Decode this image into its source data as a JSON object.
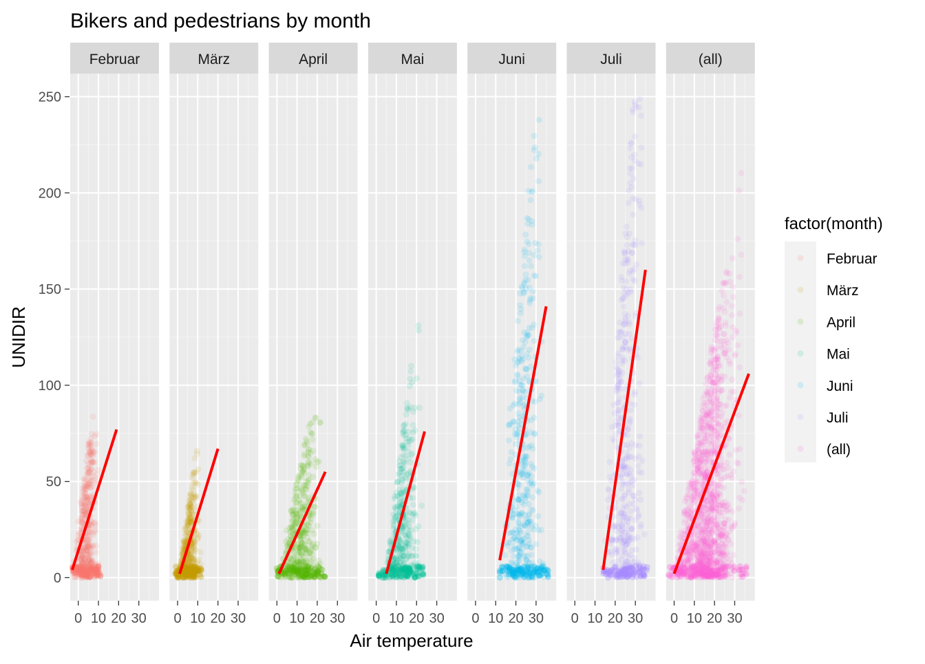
{
  "chart_data": {
    "type": "scatter",
    "title": "Bikers and pedestrians by month",
    "xlabel": "Air temperature",
    "ylabel": "UNIDIR",
    "xlim": [
      -4,
      40
    ],
    "ylim": [
      -12,
      262
    ],
    "x_ticks": [
      0,
      10,
      20,
      30
    ],
    "y_ticks": [
      0,
      50,
      100,
      150,
      200,
      250
    ],
    "x_tick_labels": [
      "0",
      "10",
      "20",
      "30"
    ],
    "y_tick_labels": [
      "0",
      "50",
      "100",
      "150",
      "200",
      "250"
    ],
    "grid": true,
    "legend": {
      "title": "factor(month)",
      "position": "right",
      "entries": [
        "Februar",
        "März",
        "April",
        "Mai",
        "Juni",
        "Juli",
        "(all)"
      ]
    },
    "panels": [
      {
        "name": "Februar",
        "color": "#F8766D",
        "x_range": [
          -3,
          11
        ],
        "trend": {
          "x0": -3,
          "y0": 4,
          "x1": 19,
          "y1": 77
        }
      },
      {
        "name": "März",
        "color": "#C49A00",
        "x_range": [
          -1,
          12
        ],
        "trend": {
          "x0": 1,
          "y0": 2,
          "x1": 20,
          "y1": 67
        }
      },
      {
        "name": "April",
        "color": "#53B400",
        "x_range": [
          0,
          24
        ],
        "trend": {
          "x0": 1,
          "y0": 2,
          "x1": 24,
          "y1": 55
        }
      },
      {
        "name": "Mai",
        "color": "#00C094",
        "x_range": [
          1,
          24
        ],
        "trend": {
          "x0": 5,
          "y0": 2,
          "x1": 24,
          "y1": 76
        }
      },
      {
        "name": "Juni",
        "color": "#00B6EB",
        "x_range": [
          12,
          36
        ],
        "trend": {
          "x0": 12,
          "y0": 9,
          "x1": 35,
          "y1": 141
        }
      },
      {
        "name": "Juli",
        "color": "#A58AFF",
        "x_range": [
          14,
          36
        ],
        "trend": {
          "x0": 14,
          "y0": 4,
          "x1": 35,
          "y1": 160
        }
      },
      {
        "name": "(all)",
        "color": "#FB61D7",
        "x_range": [
          -3,
          36
        ],
        "trend": {
          "x0": 0,
          "y0": 2,
          "x1": 37,
          "y1": 106
        }
      }
    ]
  }
}
